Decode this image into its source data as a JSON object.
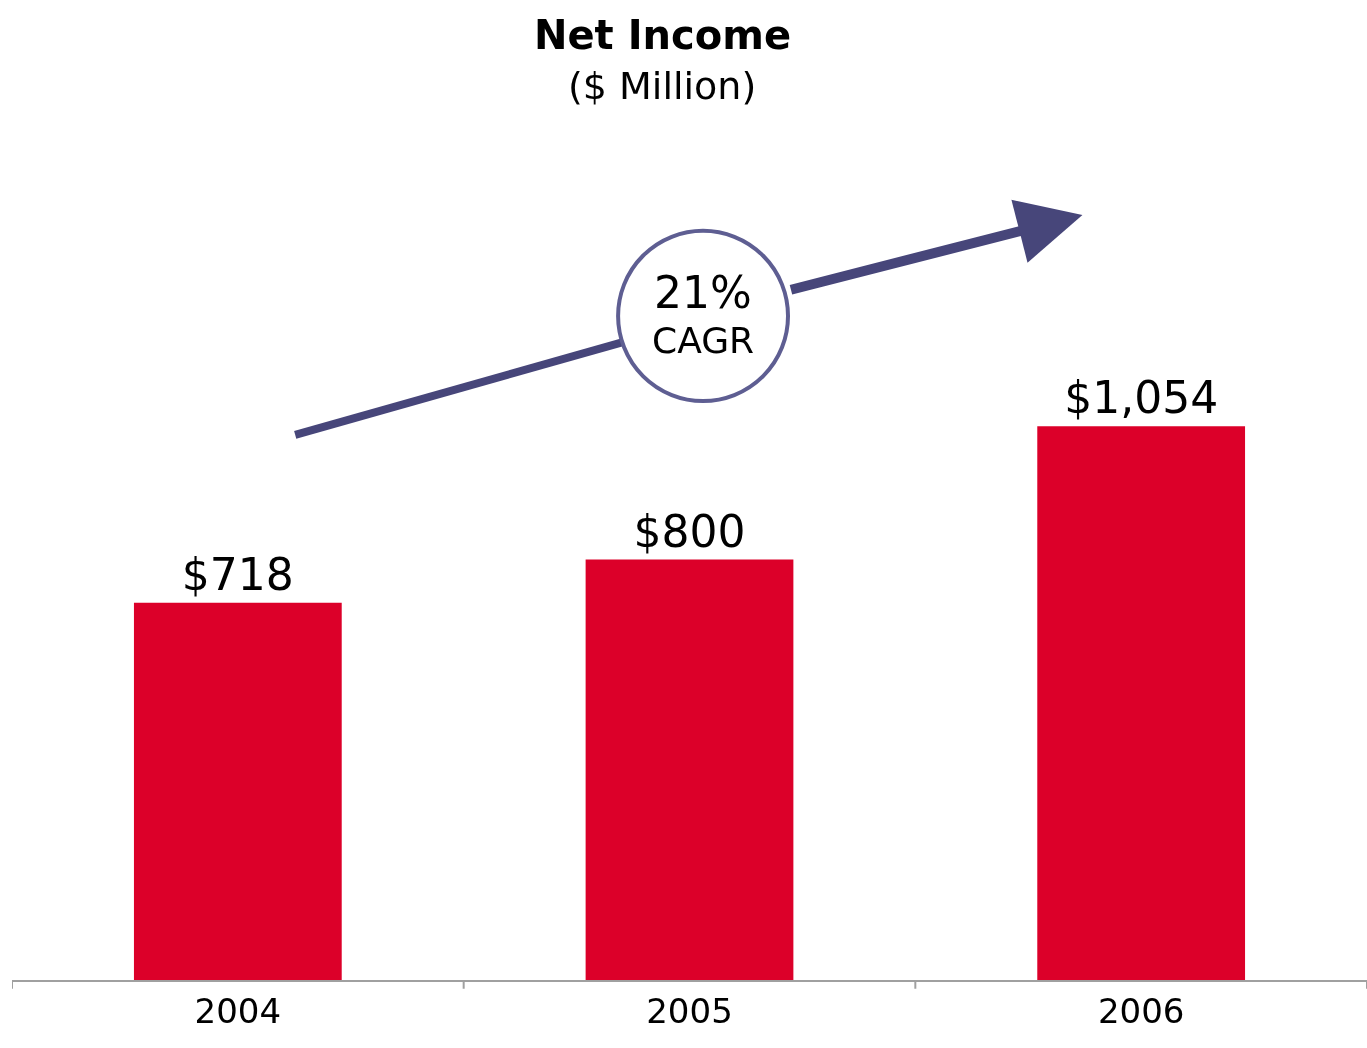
{
  "chart_data": {
    "type": "bar",
    "title": "Net Income",
    "subtitle": "($ Million)",
    "categories": [
      "2004",
      "2005",
      "2006"
    ],
    "values": [
      718,
      800,
      1054
    ],
    "value_labels": [
      "$718",
      "$800",
      "$1,054"
    ],
    "color": "#dc0029",
    "annotations": [
      "21%\nCAGR"
    ],
    "legend": false
  }
}
